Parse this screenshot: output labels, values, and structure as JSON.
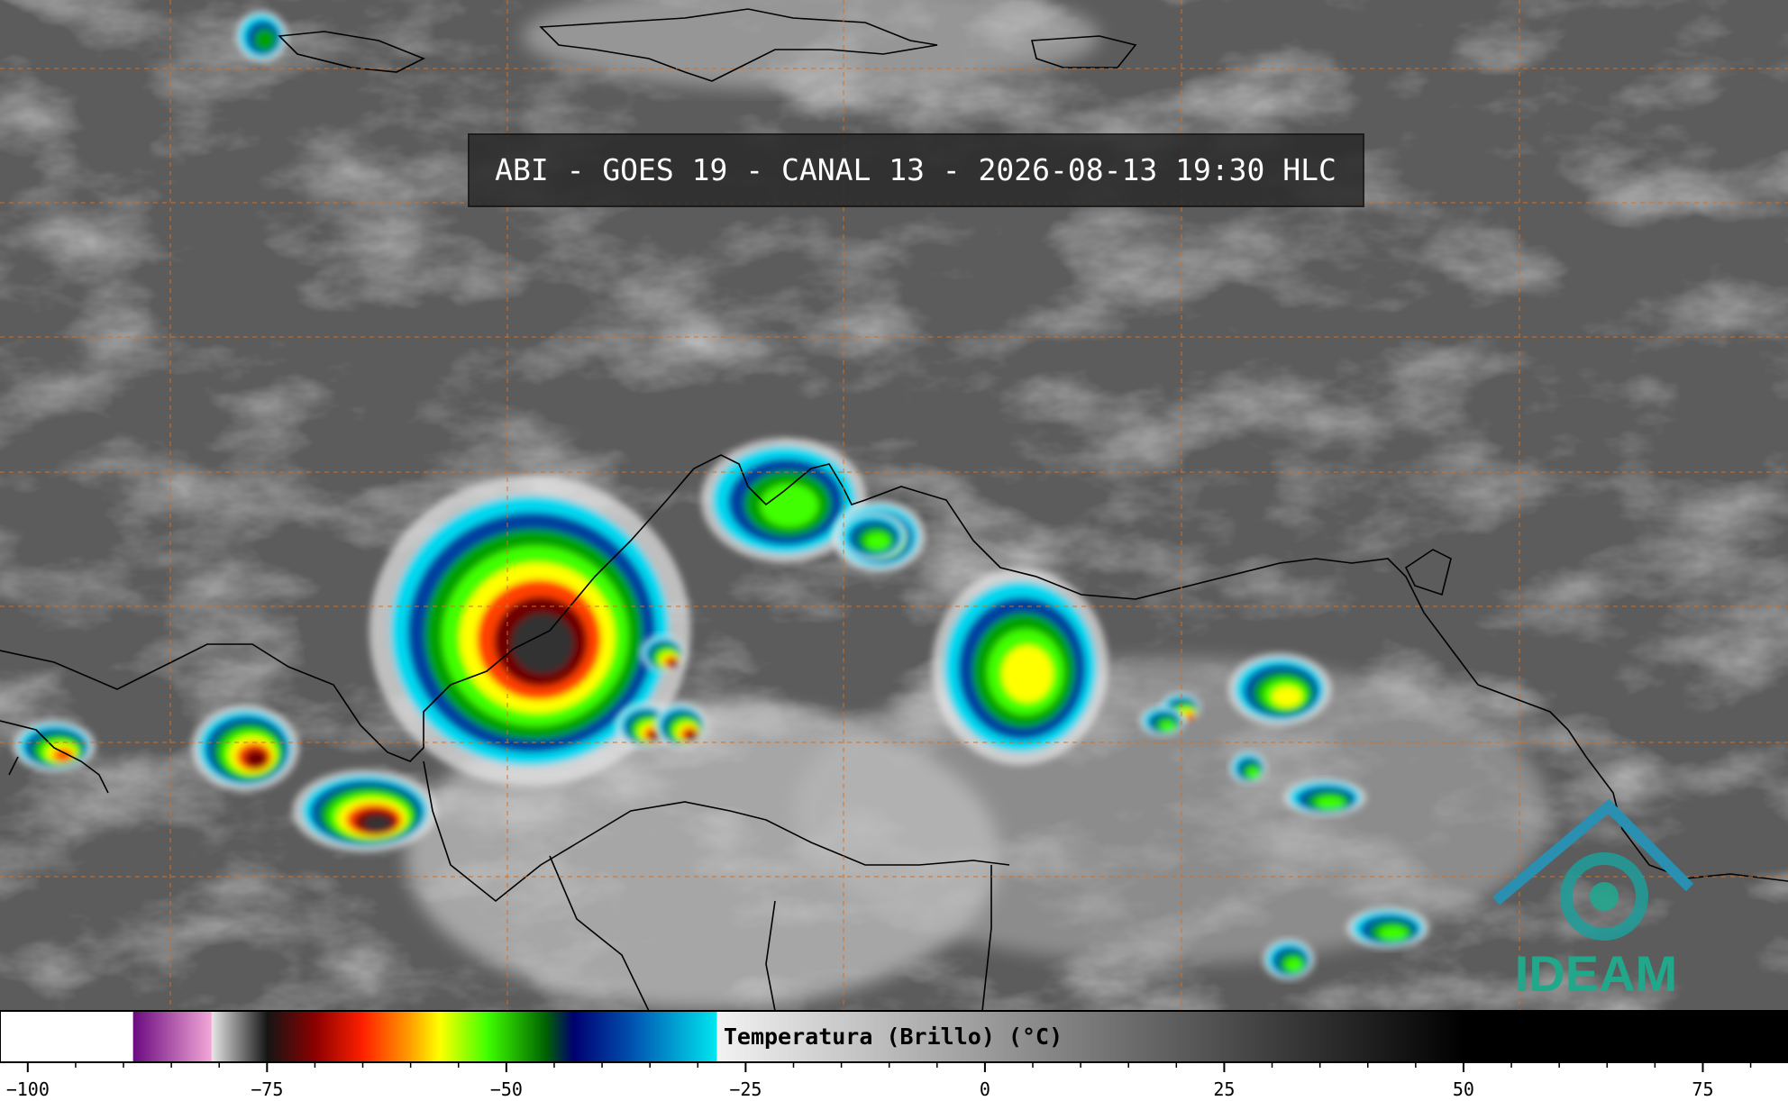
{
  "header": {
    "title": "ABI - GOES 19 - CANAL 13 - 2026-08-13 19:30 HLC"
  },
  "logo": {
    "text": "IDEAM"
  },
  "colorbar": {
    "label": "Temperatura (Brillo) (°C)",
    "xlim": [
      -102.9,
      83.9
    ],
    "xticks": [
      {
        "value": -100,
        "label": "−100"
      },
      {
        "value": -75,
        "label": "−75"
      },
      {
        "value": -50,
        "label": "−50"
      },
      {
        "value": -25,
        "label": "−25"
      },
      0,
      25,
      50,
      75
    ],
    "minor_xticks": [
      -95,
      -90,
      -85,
      -80,
      -70,
      -65,
      -60,
      -55,
      -45,
      -40,
      -35,
      -30,
      -20,
      -15,
      -10,
      -5,
      5,
      10,
      15,
      20,
      30,
      35,
      40,
      45,
      55,
      60,
      65,
      70,
      80
    ],
    "colormap": [
      {
        "value": -102.9,
        "color": "#ffffff"
      },
      {
        "value": -89,
        "color": "#ffffff"
      },
      {
        "value": -89,
        "color": "#6a0a80"
      },
      {
        "value": -80.8,
        "color": "#f4a8d8"
      },
      {
        "value": -80.8,
        "color": "#e6e6e6"
      },
      {
        "value": -75,
        "color": "#151515"
      },
      {
        "value": -70,
        "color": "#8b0000"
      },
      {
        "value": -65,
        "color": "#ff2000"
      },
      {
        "value": -60,
        "color": "#ffa000"
      },
      {
        "value": -57,
        "color": "#ffff00"
      },
      {
        "value": -52,
        "color": "#40ff00"
      },
      {
        "value": -46,
        "color": "#006400"
      },
      {
        "value": -43,
        "color": "#000070"
      },
      {
        "value": -37,
        "color": "#0050b0"
      },
      {
        "value": -28,
        "color": "#00e8f0"
      },
      {
        "value": -28,
        "color": "#f2f2f2"
      },
      {
        "value": 50,
        "color": "#000000"
      },
      {
        "value": 83.9,
        "color": "#000000"
      }
    ]
  }
}
